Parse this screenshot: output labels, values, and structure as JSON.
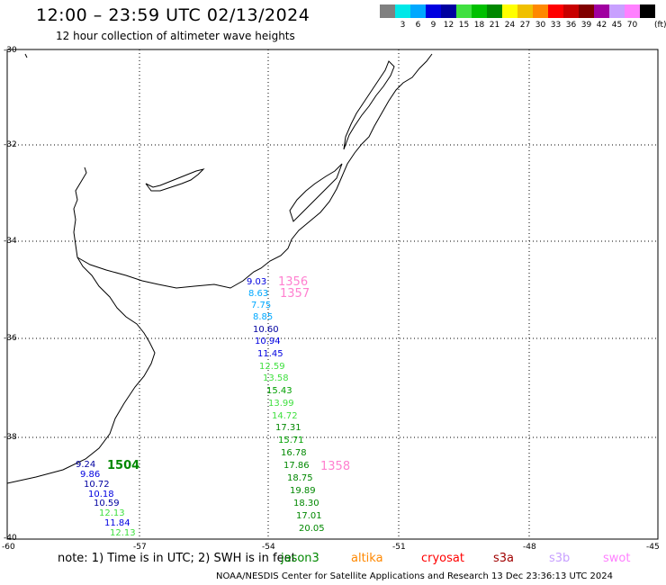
{
  "header": {
    "title": "12:00 – 23:59 UTC 02/13/2024",
    "subtitle": "12 hour collection of altimeter wave heights"
  },
  "color_scale": {
    "unit": "(ft)",
    "bins": [
      {
        "label": "",
        "color": "#808080"
      },
      {
        "label": "3",
        "color": "#00e8e8"
      },
      {
        "label": "6",
        "color": "#00a8ff"
      },
      {
        "label": "9",
        "color": "#0000e0"
      },
      {
        "label": "12",
        "color": "#0000a0"
      },
      {
        "label": "15",
        "color": "#40e040"
      },
      {
        "label": "18",
        "color": "#00c000"
      },
      {
        "label": "21",
        "color": "#008800"
      },
      {
        "label": "24",
        "color": "#ffff00"
      },
      {
        "label": "27",
        "color": "#f0c000"
      },
      {
        "label": "30",
        "color": "#ff8800"
      },
      {
        "label": "33",
        "color": "#ff0000"
      },
      {
        "label": "36",
        "color": "#c80000"
      },
      {
        "label": "39",
        "color": "#800000"
      },
      {
        "label": "42",
        "color": "#a000a0"
      },
      {
        "label": "45",
        "color": "#c8a0ff"
      },
      {
        "label": "70",
        "color": "#ff80ff"
      },
      {
        "label": "",
        "color": "#000000"
      }
    ]
  },
  "axes": {
    "lat_labels": [
      "-30",
      "-32",
      "-34",
      "-36",
      "-38",
      "-40"
    ],
    "lon_labels": [
      "-60",
      "-57",
      "-54",
      "-51",
      "-48",
      "-45"
    ]
  },
  "passes": [
    {
      "time": "1356",
      "color": "#ff80d0"
    },
    {
      "time": "1357",
      "color": "#ff80d0"
    },
    {
      "time": "1358",
      "color": "#ff80d0"
    },
    {
      "time": "1504",
      "color": "#008800"
    }
  ],
  "tracks": {
    "track_a": [
      {
        "value": "9.03",
        "color": "#0000e0"
      },
      {
        "value": "8.63",
        "color": "#00a8ff"
      },
      {
        "value": "7.75",
        "color": "#00a8ff"
      },
      {
        "value": "8.85",
        "color": "#00a8ff"
      },
      {
        "value": "10.60",
        "color": "#0000a0"
      },
      {
        "value": "10.94",
        "color": "#0000e0"
      },
      {
        "value": "11.45",
        "color": "#0000e0"
      },
      {
        "value": "12.59",
        "color": "#40e040"
      },
      {
        "value": "13.58",
        "color": "#40e040"
      },
      {
        "value": "15.43",
        "color": "#00a000"
      },
      {
        "value": "13.99",
        "color": "#40e040"
      },
      {
        "value": "14.72",
        "color": "#40e040"
      },
      {
        "value": "17.31",
        "color": "#008800"
      },
      {
        "value": "15.71",
        "color": "#00a000"
      },
      {
        "value": "16.78",
        "color": "#008800"
      },
      {
        "value": "17.86",
        "color": "#008800"
      },
      {
        "value": "18.75",
        "color": "#008800"
      },
      {
        "value": "19.89",
        "color": "#008800"
      },
      {
        "value": "18.30",
        "color": "#008800"
      },
      {
        "value": "17.01",
        "color": "#008800"
      },
      {
        "value": "20.05",
        "color": "#008800"
      }
    ],
    "track_b": [
      {
        "value": "9.24",
        "color": "#0000a0"
      },
      {
        "value": "9.86",
        "color": "#0000e0"
      },
      {
        "value": "10.72",
        "color": "#0000a0"
      },
      {
        "value": "10.18",
        "color": "#0000e0"
      },
      {
        "value": "10.59",
        "color": "#0000a0"
      },
      {
        "value": "12.13",
        "color": "#40e040"
      },
      {
        "value": "11.84",
        "color": "#0000e0"
      },
      {
        "value": "12.13",
        "color": "#40e040"
      }
    ]
  },
  "footer": {
    "note": "note:  1) Time is in UTC;  2) SWH is in feet",
    "legend": [
      {
        "name": "jason3",
        "color": "#008800"
      },
      {
        "name": "altika",
        "color": "#ff8800"
      },
      {
        "name": "cryosat",
        "color": "#ff0000"
      },
      {
        "name": "s3a",
        "color": "#a00000"
      },
      {
        "name": "s3b",
        "color": "#c8a0ff"
      },
      {
        "name": "swot",
        "color": "#ff80ff"
      }
    ],
    "credit": "NOAA/NESDIS Center for Satellite Applications and Research     13 Dec 23:36:13 UTC 2024"
  }
}
